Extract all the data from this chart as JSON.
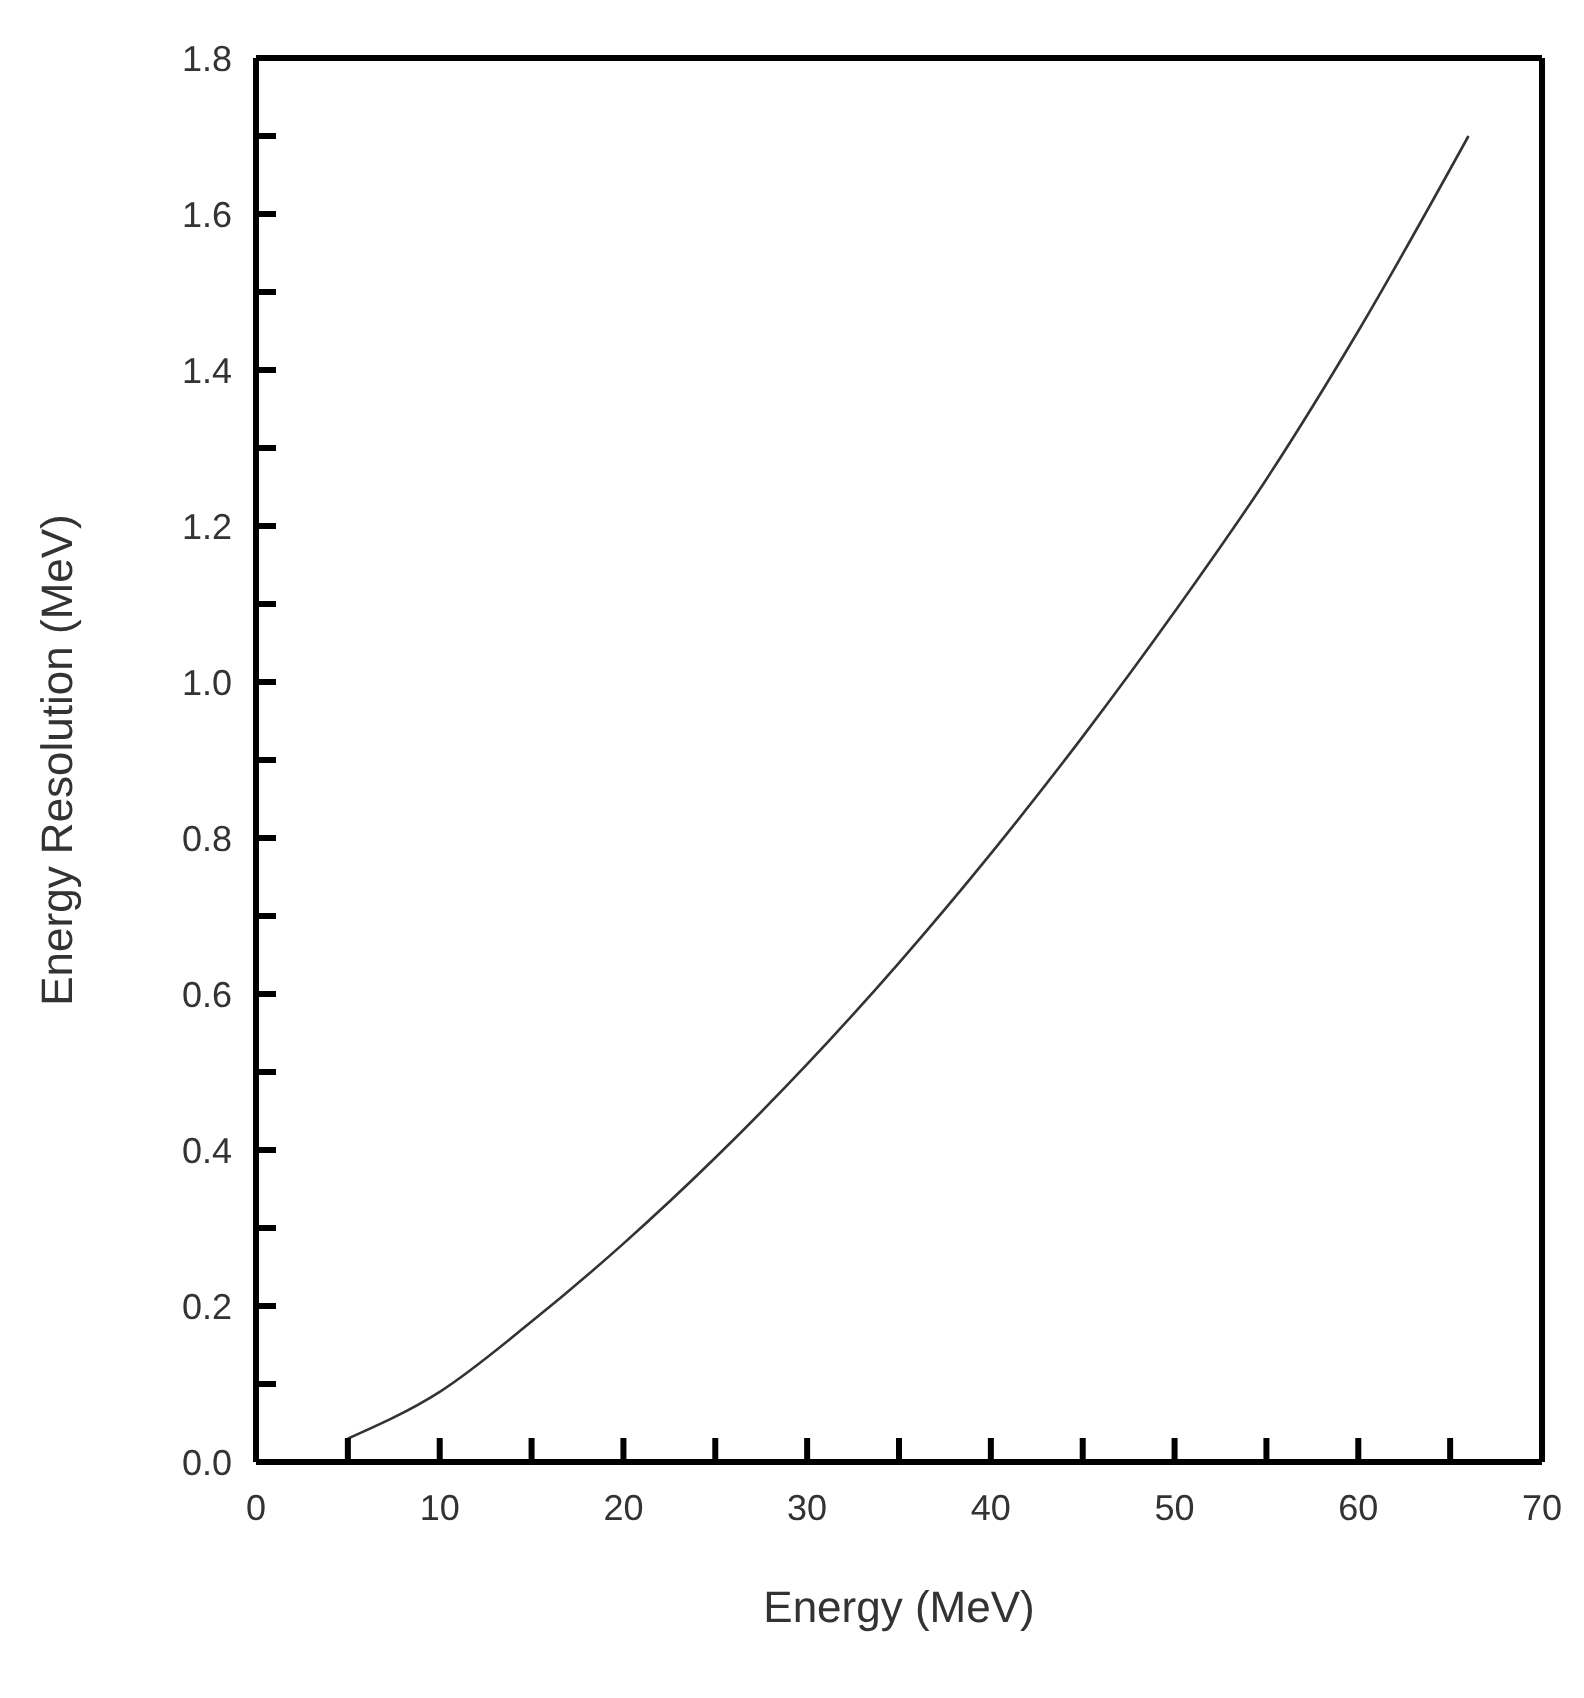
{
  "chart_data": {
    "type": "line",
    "xlabel": "Energy (MeV)",
    "ylabel": "Energy Resolution (MeV)",
    "x": [
      5,
      10,
      15,
      20,
      25,
      30,
      35,
      40,
      45,
      50,
      55,
      60,
      66
    ],
    "series": [
      {
        "color": "#333333",
        "values": [
          0.03,
          0.09,
          0.18,
          0.28,
          0.39,
          0.51,
          0.64,
          0.78,
          0.93,
          1.09,
          1.26,
          1.45,
          1.7
        ]
      }
    ],
    "xlim": [
      0,
      70
    ],
    "xticks": [
      0,
      {
        "value": 5,
        "label": null
      },
      10,
      {
        "value": 15,
        "label": null
      },
      20,
      {
        "value": 25,
        "label": null
      },
      30,
      {
        "value": 35,
        "label": null
      },
      40,
      {
        "value": 45,
        "label": null
      },
      50,
      {
        "value": 55,
        "label": null
      },
      60,
      {
        "value": 65,
        "label": null
      },
      70
    ],
    "ylim": [
      0,
      1.8
    ],
    "yticks": [
      {
        "value": 0,
        "label": "0.0"
      },
      {
        "value": 0.1,
        "label": null
      },
      {
        "value": 0.2,
        "label": "0.2"
      },
      {
        "value": 0.3,
        "label": null
      },
      {
        "value": 0.4,
        "label": "0.4"
      },
      {
        "value": 0.5,
        "label": null
      },
      {
        "value": 0.6,
        "label": "0.6"
      },
      {
        "value": 0.7,
        "label": null
      },
      {
        "value": 0.8,
        "label": "0.8"
      },
      {
        "value": 0.9,
        "label": null
      },
      {
        "value": 1,
        "label": "1.0"
      },
      {
        "value": 1.1,
        "label": null
      },
      {
        "value": 1.2,
        "label": "1.2"
      },
      {
        "value": 1.3,
        "label": null
      },
      {
        "value": 1.4,
        "label": "1.4"
      },
      {
        "value": 1.5,
        "label": null
      },
      {
        "value": 1.6,
        "label": "1.6"
      },
      {
        "value": 1.7,
        "label": null
      },
      {
        "value": 1.8,
        "label": "1.8"
      }
    ],
    "grid": false,
    "marker": "none",
    "line_style": "solid"
  }
}
